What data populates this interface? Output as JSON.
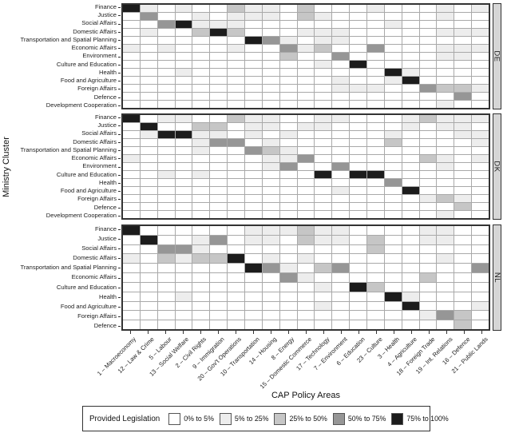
{
  "chart_data": {
    "type": "heatmap",
    "y_axis_title": "Ministry Cluster",
    "x_axis_title": "CAP Policy Areas",
    "x_categories": [
      "1 – Macroeconomy",
      "12 – Law & Crime",
      "5 – Labour",
      "13 – Social Welfare",
      "2 – Civil Rights",
      "9 – Immigration",
      "20 – Gov't Operations",
      "10 – Transportation",
      "14 – Housing",
      "8 – Energy",
      "15 – Domestic Commerce",
      "17 – Technology",
      "7 – Environment",
      "6 – Education",
      "23 – Culture",
      "3 – Health",
      "4 – Agriculture",
      "18 – Foreign Trade",
      "19 – Int. Relations",
      "16 – Defence",
      "21 – Public Lands"
    ],
    "legend": {
      "title": "Provided Legislation",
      "bins": [
        {
          "label": "0% to 5%",
          "color": "#ffffff"
        },
        {
          "label": "5% to 25%",
          "color": "#ededed"
        },
        {
          "label": "25% to 50%",
          "color": "#c6c6c6"
        },
        {
          "label": "50% to 75%",
          "color": "#969696"
        },
        {
          "label": "75% to 100%",
          "color": "#1c1c1c"
        }
      ]
    },
    "values_are": "legend_bin_index",
    "panels": [
      {
        "label": "DE",
        "rows": [
          {
            "label": "Finance",
            "values": [
              4,
              1,
              0,
              1,
              0,
              0,
              2,
              1,
              1,
              0,
              2,
              0,
              0,
              0,
              1,
              0,
              0,
              0,
              1,
              0,
              1
            ]
          },
          {
            "label": "Justice",
            "values": [
              0,
              3,
              0,
              0,
              1,
              0,
              1,
              1,
              1,
              0,
              2,
              1,
              0,
              0,
              0,
              0,
              0,
              0,
              1,
              0,
              0
            ]
          },
          {
            "label": "Social Affairs",
            "values": [
              0,
              0,
              3,
              4,
              1,
              1,
              1,
              0,
              0,
              0,
              0,
              0,
              0,
              0,
              0,
              1,
              0,
              0,
              0,
              0,
              0
            ]
          },
          {
            "label": "Domestic Affairs",
            "values": [
              0,
              1,
              0,
              0,
              2,
              4,
              2,
              0,
              0,
              0,
              1,
              1,
              1,
              0,
              0,
              0,
              0,
              0,
              1,
              1,
              1
            ]
          },
          {
            "label": "Transportation and Spatial Planning",
            "values": [
              0,
              0,
              0,
              0,
              0,
              0,
              0,
              4,
              3,
              1,
              0,
              1,
              1,
              0,
              0,
              0,
              0,
              0,
              0,
              0,
              0
            ]
          },
          {
            "label": "Economic Affairs",
            "values": [
              1,
              0,
              1,
              0,
              0,
              0,
              1,
              0,
              0,
              3,
              1,
              2,
              0,
              0,
              3,
              0,
              0,
              0,
              1,
              1,
              1
            ]
          },
          {
            "label": "Environment",
            "values": [
              0,
              0,
              0,
              0,
              0,
              0,
              0,
              0,
              0,
              2,
              0,
              0,
              3,
              0,
              0,
              0,
              0,
              0,
              1,
              1,
              0
            ]
          },
          {
            "label": "Culture and Education",
            "values": [
              0,
              0,
              0,
              0,
              0,
              0,
              0,
              0,
              0,
              0,
              0,
              1,
              0,
              4,
              0,
              0,
              0,
              0,
              0,
              0,
              0
            ]
          },
          {
            "label": "Health",
            "values": [
              0,
              0,
              0,
              1,
              0,
              0,
              0,
              0,
              0,
              0,
              0,
              0,
              0,
              0,
              0,
              4,
              1,
              0,
              0,
              0,
              0
            ]
          },
          {
            "label": "Food and Agriculture",
            "values": [
              0,
              0,
              0,
              0,
              0,
              0,
              0,
              0,
              0,
              0,
              0,
              0,
              1,
              0,
              0,
              1,
              4,
              0,
              0,
              0,
              0
            ]
          },
          {
            "label": "Foreign Affairs",
            "values": [
              0,
              0,
              0,
              0,
              0,
              0,
              0,
              0,
              0,
              0,
              0,
              0,
              1,
              1,
              1,
              0,
              0,
              3,
              2,
              2,
              1
            ]
          },
          {
            "label": "Defence",
            "values": [
              0,
              0,
              0,
              0,
              0,
              0,
              0,
              0,
              0,
              0,
              0,
              0,
              0,
              0,
              0,
              0,
              0,
              0,
              0,
              3,
              0
            ]
          },
          {
            "label": "Development Cooperation",
            "values": [
              0,
              0,
              0,
              0,
              0,
              0,
              0,
              0,
              0,
              0,
              0,
              0,
              0,
              0,
              0,
              0,
              0,
              0,
              1,
              0,
              0
            ]
          }
        ]
      },
      {
        "label": "DK",
        "rows": [
          {
            "label": "Finance",
            "values": [
              4,
              0,
              1,
              1,
              0,
              0,
              2,
              1,
              1,
              0,
              0,
              1,
              1,
              0,
              0,
              0,
              1,
              2,
              1,
              1,
              1
            ]
          },
          {
            "label": "Justice",
            "values": [
              0,
              4,
              0,
              0,
              2,
              2,
              0,
              1,
              1,
              0,
              1,
              1,
              0,
              0,
              0,
              0,
              1,
              0,
              1,
              1,
              0
            ]
          },
          {
            "label": "Social Affairs",
            "values": [
              0,
              1,
              4,
              4,
              1,
              1,
              0,
              1,
              0,
              1,
              0,
              0,
              0,
              0,
              0,
              1,
              0,
              0,
              0,
              1,
              1
            ]
          },
          {
            "label": "Domestic Affairs",
            "values": [
              0,
              0,
              0,
              0,
              1,
              3,
              3,
              0,
              1,
              0,
              0,
              0,
              0,
              0,
              0,
              2,
              0,
              0,
              0,
              0,
              1
            ]
          },
          {
            "label": "Transportation and Spatial Planning",
            "values": [
              0,
              0,
              0,
              0,
              1,
              0,
              0,
              3,
              2,
              1,
              0,
              0,
              0,
              0,
              0,
              0,
              0,
              0,
              0,
              0,
              0
            ]
          },
          {
            "label": "Economic Affairs",
            "values": [
              1,
              0,
              0,
              0,
              0,
              0,
              0,
              0,
              1,
              1,
              3,
              0,
              0,
              0,
              0,
              0,
              0,
              2,
              1,
              0,
              1
            ]
          },
          {
            "label": "Environment",
            "values": [
              0,
              0,
              0,
              0,
              0,
              0,
              0,
              0,
              1,
              3,
              0,
              0,
              3,
              0,
              0,
              0,
              0,
              0,
              1,
              0,
              0
            ]
          },
          {
            "label": "Culture and Education",
            "values": [
              0,
              0,
              1,
              0,
              1,
              0,
              0,
              0,
              0,
              0,
              0,
              4,
              0,
              4,
              4,
              0,
              0,
              0,
              0,
              0,
              0
            ]
          },
          {
            "label": "Health",
            "values": [
              0,
              0,
              0,
              0,
              0,
              0,
              0,
              0,
              0,
              0,
              0,
              0,
              0,
              0,
              0,
              3,
              0,
              0,
              0,
              0,
              0
            ]
          },
          {
            "label": "Food and Agriculture",
            "values": [
              0,
              0,
              0,
              0,
              0,
              0,
              0,
              0,
              0,
              0,
              0,
              0,
              1,
              0,
              0,
              0,
              4,
              0,
              0,
              0,
              0
            ]
          },
          {
            "label": "Foreign Affairs",
            "values": [
              0,
              0,
              0,
              0,
              0,
              0,
              0,
              0,
              0,
              0,
              0,
              0,
              0,
              0,
              0,
              0,
              0,
              1,
              2,
              1,
              0
            ]
          },
          {
            "label": "Defence",
            "values": [
              0,
              0,
              0,
              0,
              0,
              0,
              0,
              0,
              0,
              0,
              0,
              0,
              0,
              0,
              0,
              0,
              0,
              0,
              0,
              2,
              0
            ]
          },
          {
            "label": "Development Cooperation",
            "values": [
              0,
              0,
              0,
              0,
              0,
              0,
              0,
              0,
              0,
              0,
              0,
              0,
              0,
              0,
              0,
              0,
              0,
              0,
              1,
              0,
              0
            ]
          }
        ]
      },
      {
        "label": "NL",
        "rows": [
          {
            "label": "Finance",
            "values": [
              4,
              0,
              0,
              0,
              0,
              0,
              0,
              1,
              1,
              1,
              2,
              1,
              1,
              0,
              0,
              0,
              0,
              1,
              1,
              0,
              0
            ]
          },
          {
            "label": "Justice",
            "values": [
              0,
              4,
              0,
              0,
              1,
              3,
              0,
              1,
              1,
              0,
              2,
              1,
              1,
              0,
              2,
              0,
              0,
              1,
              1,
              0,
              0
            ]
          },
          {
            "label": "Social Affairs",
            "values": [
              0,
              0,
              3,
              3,
              1,
              0,
              0,
              0,
              0,
              0,
              0,
              0,
              0,
              0,
              2,
              0,
              0,
              0,
              0,
              0,
              0
            ]
          },
          {
            "label": "Domestic Affairs",
            "values": [
              1,
              0,
              2,
              1,
              2,
              2,
              4,
              0,
              1,
              0,
              1,
              0,
              0,
              0,
              0,
              0,
              0,
              0,
              1,
              0,
              0
            ]
          },
          {
            "label": "Transportation and Spatial Planning",
            "values": [
              0,
              0,
              0,
              0,
              0,
              0,
              0,
              4,
              3,
              1,
              0,
              2,
              3,
              0,
              0,
              0,
              0,
              0,
              0,
              0,
              3
            ]
          },
          {
            "label": "Economic Affairs",
            "values": [
              0,
              0,
              0,
              0,
              0,
              0,
              0,
              0,
              0,
              3,
              1,
              0,
              0,
              0,
              0,
              0,
              0,
              2,
              0,
              0,
              0
            ]
          },
          {
            "label": "Culture and Education",
            "values": [
              0,
              0,
              0,
              0,
              0,
              0,
              0,
              0,
              0,
              0,
              0,
              1,
              0,
              4,
              2,
              0,
              0,
              0,
              0,
              0,
              0
            ]
          },
          {
            "label": "Health",
            "values": [
              0,
              0,
              0,
              1,
              0,
              0,
              0,
              0,
              0,
              0,
              0,
              0,
              0,
              0,
              0,
              4,
              1,
              0,
              0,
              0,
              0
            ]
          },
          {
            "label": "Food and Agriculture",
            "values": [
              0,
              0,
              0,
              0,
              0,
              0,
              0,
              0,
              0,
              0,
              0,
              1,
              0,
              0,
              0,
              0,
              4,
              0,
              0,
              0,
              1
            ]
          },
          {
            "label": "Foreign Affairs",
            "values": [
              0,
              0,
              0,
              0,
              0,
              0,
              0,
              0,
              0,
              0,
              0,
              0,
              0,
              0,
              0,
              0,
              0,
              1,
              3,
              2,
              0
            ]
          },
          {
            "label": "Defence",
            "values": [
              0,
              0,
              0,
              0,
              0,
              0,
              0,
              0,
              0,
              0,
              0,
              0,
              0,
              0,
              0,
              0,
              0,
              0,
              0,
              2,
              0
            ]
          }
        ]
      }
    ]
  }
}
